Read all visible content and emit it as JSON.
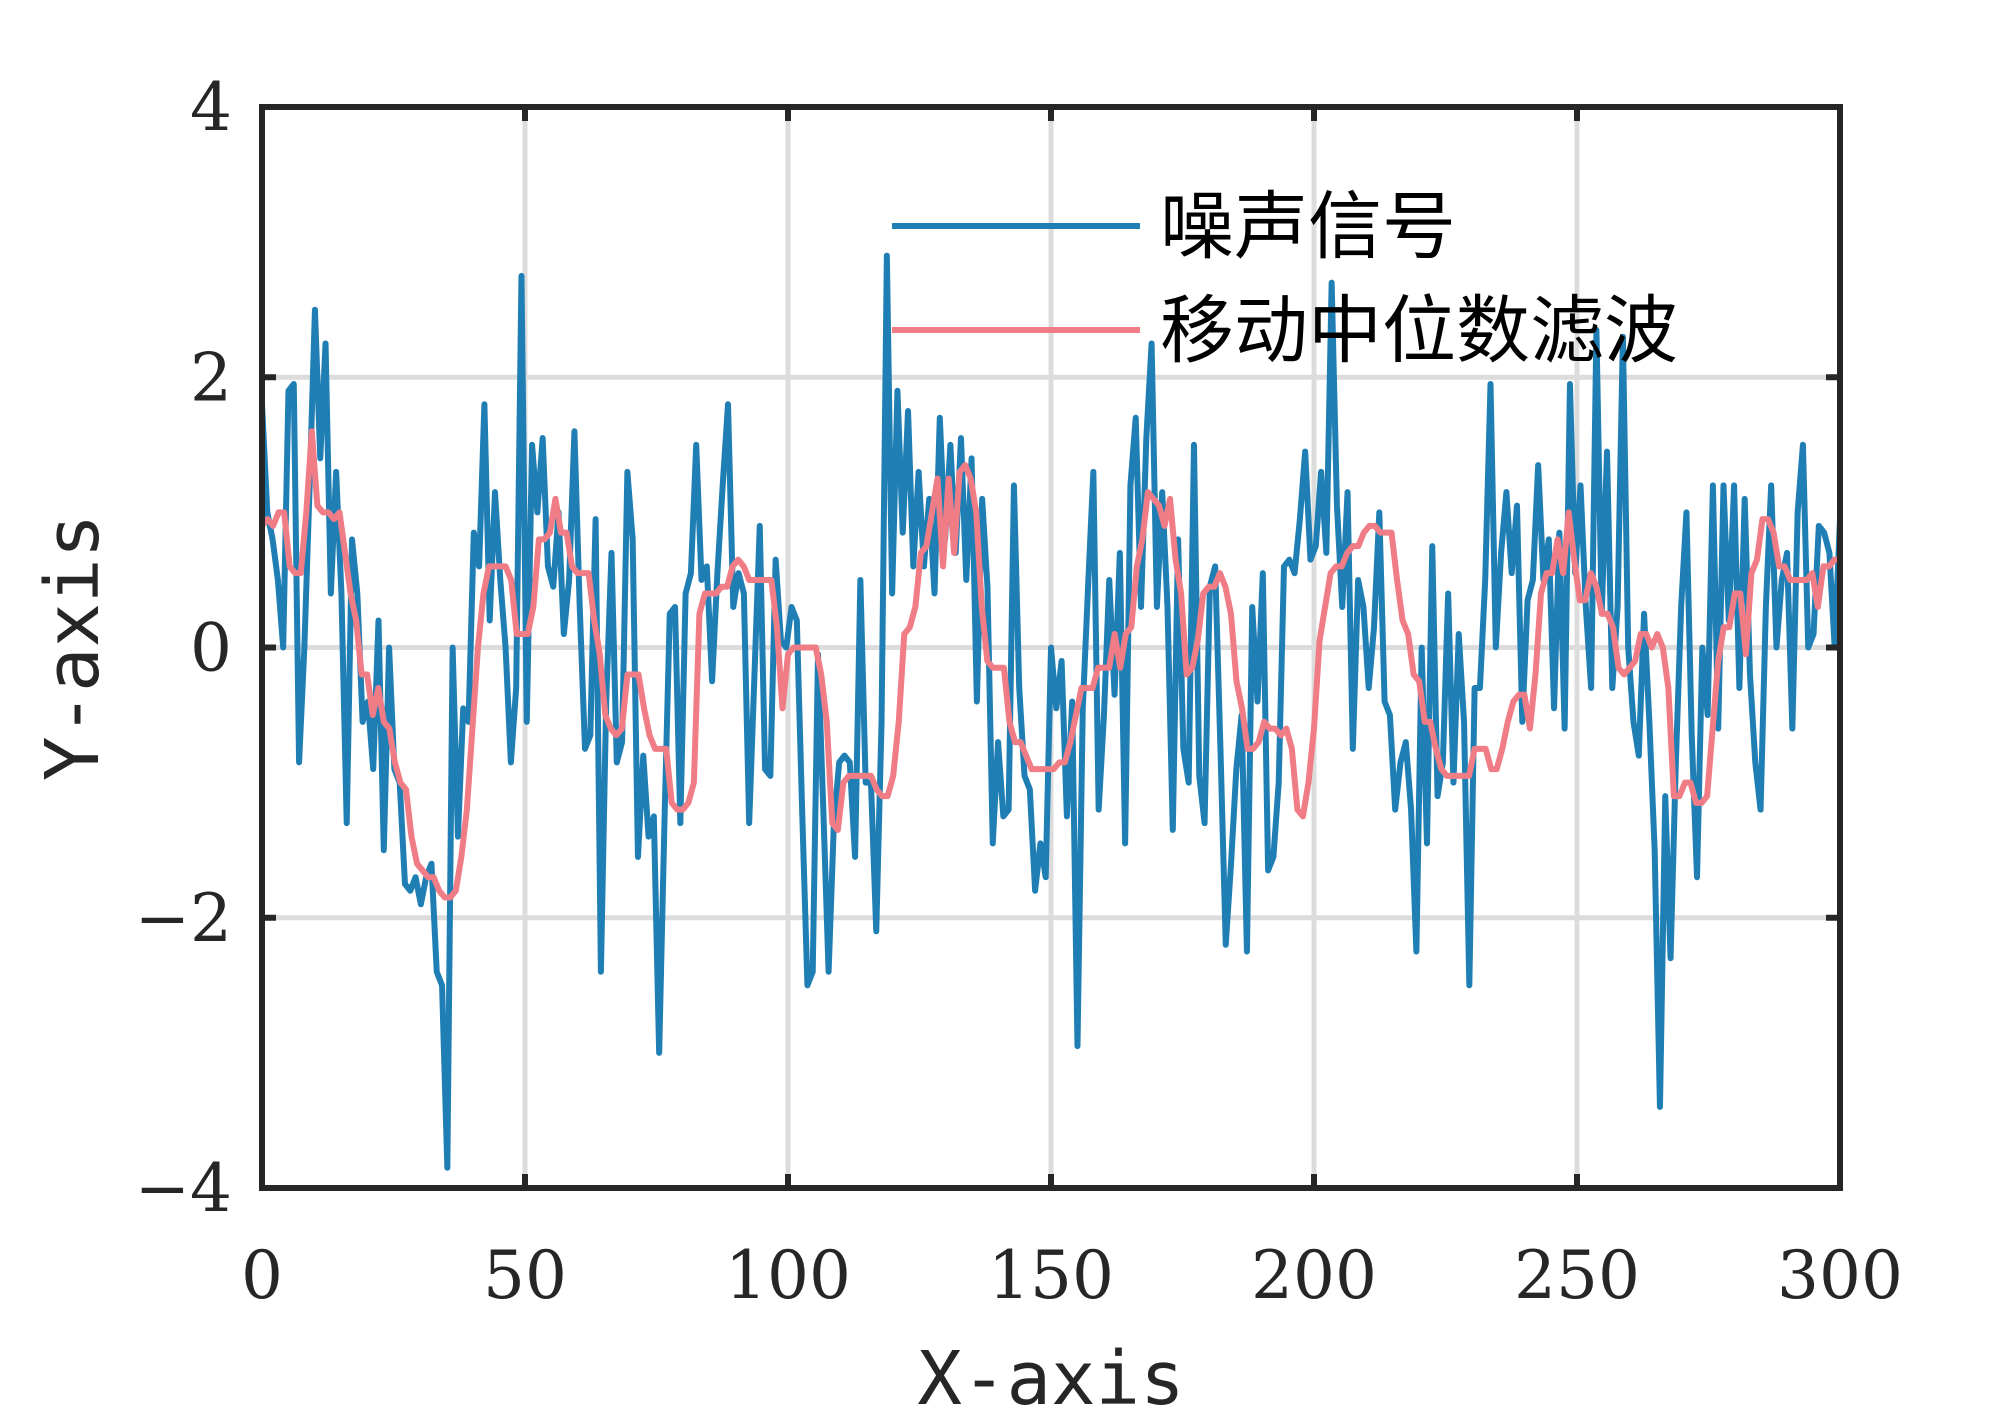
{
  "chart_data": {
    "type": "line",
    "title": "",
    "xlabel": "X-axis",
    "ylabel": "Y-axis",
    "xlim": [
      0,
      300
    ],
    "ylim": [
      -4,
      4
    ],
    "xticks": [
      0,
      50,
      100,
      150,
      200,
      250,
      300
    ],
    "yticks": [
      -4,
      -2,
      0,
      2,
      4
    ],
    "xtick_labels": [
      "0",
      "50",
      "100",
      "150",
      "200",
      "250",
      "300"
    ],
    "ytick_labels": [
      "−4",
      "−2",
      "0",
      "2",
      "4"
    ],
    "grid": true,
    "legend_position": "top-right",
    "series": [
      {
        "name": "噪声信号",
        "color": "#1F7FB4",
        "values": [
          1.8,
          1.0,
          0.8,
          0.5,
          0.0,
          1.9,
          1.95,
          -0.85,
          0.0,
          1.2,
          2.5,
          1.4,
          2.25,
          0.4,
          1.3,
          0.4,
          -1.3,
          0.8,
          0.4,
          -0.55,
          -0.4,
          -0.9,
          0.2,
          -1.5,
          0.0,
          -0.9,
          -1.0,
          -1.75,
          -1.8,
          -1.7,
          -1.9,
          -1.7,
          -1.6,
          -2.4,
          -2.5,
          -3.85,
          0.0,
          -1.4,
          -0.45,
          -0.55,
          0.85,
          0.6,
          1.8,
          0.2,
          1.15,
          0.5,
          0.0,
          -0.85,
          -0.3,
          2.75,
          -0.55,
          1.5,
          1.0,
          1.55,
          0.6,
          0.45,
          1.0,
          0.1,
          0.5,
          1.6,
          0.3,
          -0.75,
          -0.65,
          0.95,
          -2.4,
          -0.4,
          0.7,
          -0.85,
          -0.7,
          1.3,
          0.8,
          -1.55,
          -0.8,
          -1.4,
          -1.25,
          -3.0,
          -1.3,
          0.25,
          0.3,
          -1.3,
          0.4,
          0.55,
          1.5,
          0.5,
          0.6,
          -0.25,
          0.55,
          1.2,
          1.8,
          0.3,
          0.55,
          0.4,
          -1.3,
          -0.2,
          0.9,
          -0.9,
          -0.95,
          0.65,
          0.05,
          0.0,
          0.3,
          0.2,
          -1.2,
          -2.5,
          -2.4,
          -0.05,
          -1.2,
          -2.4,
          -1.3,
          -0.85,
          -0.8,
          -0.85,
          -1.55,
          0.5,
          -1.0,
          -1.0,
          -2.1,
          -0.55,
          2.9,
          0.4,
          1.9,
          0.85,
          1.75,
          0.6,
          1.3,
          0.6,
          1.1,
          0.4,
          1.7,
          0.8,
          1.5,
          0.7,
          1.55,
          0.5,
          1.4,
          -0.4,
          1.1,
          0.45,
          -1.45,
          -0.7,
          -1.25,
          -1.2,
          1.2,
          -0.3,
          -0.95,
          -1.05,
          -1.8,
          -1.45,
          -1.7,
          0.0,
          -0.45,
          -0.1,
          -1.25,
          -0.4,
          -2.95,
          -0.45,
          0.45,
          1.3,
          -1.2,
          -0.5,
          0.5,
          -0.35,
          0.7,
          -1.45,
          1.2,
          1.7,
          0.3,
          1.55,
          2.25,
          0.3,
          1.15,
          0.3,
          -1.35,
          0.8,
          -0.75,
          -1.0,
          1.5,
          -0.95,
          -1.3,
          0.45,
          0.6,
          -0.75,
          -2.2,
          -1.6,
          -0.9,
          -0.5,
          -2.25,
          0.3,
          -0.4,
          0.55,
          -1.65,
          -1.55,
          -1.0,
          0.6,
          0.65,
          0.55,
          0.95,
          1.45,
          0.65,
          0.75,
          1.3,
          0.7,
          2.7,
          1.05,
          0.3,
          1.15,
          -0.75,
          0.5,
          0.3,
          -0.3,
          0.15,
          1.0,
          -0.4,
          -0.5,
          -1.2,
          -0.85,
          -0.7,
          -1.2,
          -2.25,
          0.0,
          -1.45,
          0.75,
          -1.1,
          -0.85,
          0.4,
          -1.0,
          0.1,
          -0.55,
          -2.5,
          -0.3,
          -0.3,
          0.5,
          1.95,
          0.0,
          0.7,
          1.15,
          0.55,
          1.05,
          -0.55,
          0.35,
          0.5,
          1.35,
          0.5,
          0.8,
          -0.45,
          0.85,
          -0.6,
          1.95,
          0.55,
          1.2,
          0.3,
          -0.3,
          2.35,
          0.25,
          1.45,
          -0.3,
          0.3,
          2.3,
          0.0,
          -0.55,
          -0.8,
          0.25,
          -0.55,
          -1.5,
          -3.4,
          -1.1,
          -2.3,
          -0.85,
          0.3,
          1.0,
          -0.65,
          -1.7,
          0.0,
          -0.5,
          1.2,
          -0.6,
          1.2,
          0.2,
          1.2,
          -0.3,
          1.1,
          -0.2,
          -0.85,
          -1.2,
          0.3,
          1.2,
          0.0,
          0.5,
          0.7,
          -0.6,
          1.0,
          1.5,
          0.0,
          0.1,
          0.9,
          0.85,
          0.7,
          0.0,
          0.95
        ]
      },
      {
        "name": "移动中位数滤波",
        "color": "#F07C86",
        "values": [
          0.9,
          0.95,
          0.9,
          1.0,
          1.0,
          0.6,
          0.55,
          0.55,
          1.0,
          1.6,
          1.05,
          1.0,
          1.0,
          0.95,
          1.0,
          0.7,
          0.4,
          0.2,
          -0.2,
          -0.2,
          -0.5,
          -0.3,
          -0.55,
          -0.6,
          -0.85,
          -1.0,
          -1.05,
          -1.4,
          -1.6,
          -1.65,
          -1.7,
          -1.7,
          -1.8,
          -1.85,
          -1.85,
          -1.8,
          -1.55,
          -1.2,
          -0.6,
          0.0,
          0.4,
          0.6,
          0.6,
          0.6,
          0.6,
          0.5,
          0.1,
          0.1,
          0.1,
          0.3,
          0.8,
          0.8,
          0.85,
          1.1,
          0.85,
          0.85,
          0.6,
          0.55,
          0.55,
          0.55,
          0.2,
          -0.05,
          -0.5,
          -0.6,
          -0.65,
          -0.6,
          -0.2,
          -0.2,
          -0.2,
          -0.45,
          -0.65,
          -0.75,
          -0.75,
          -0.75,
          -1.15,
          -1.2,
          -1.2,
          -1.15,
          -1.0,
          0.25,
          0.4,
          0.4,
          0.4,
          0.45,
          0.45,
          0.6,
          0.65,
          0.6,
          0.5,
          0.5,
          0.5,
          0.5,
          0.5,
          0.15,
          -0.45,
          -0.05,
          0.0,
          0.0,
          0.0,
          0.0,
          0.0,
          -0.2,
          -0.55,
          -1.3,
          -1.35,
          -1.0,
          -0.95,
          -0.95,
          -0.95,
          -0.95,
          -0.95,
          -1.05,
          -1.1,
          -1.1,
          -0.95,
          -0.55,
          0.1,
          0.15,
          0.3,
          0.7,
          0.75,
          1.0,
          1.25,
          0.6,
          1.25,
          0.7,
          1.3,
          1.35,
          1.25,
          1.0,
          0.3,
          -0.1,
          -0.15,
          -0.15,
          -0.15,
          -0.55,
          -0.7,
          -0.7,
          -0.8,
          -0.9,
          -0.9,
          -0.9,
          -0.9,
          -0.9,
          -0.85,
          -0.85,
          -0.7,
          -0.5,
          -0.3,
          -0.3,
          -0.3,
          -0.15,
          -0.15,
          -0.15,
          0.1,
          -0.15,
          0.1,
          0.15,
          0.6,
          0.8,
          1.15,
          1.1,
          1.05,
          0.9,
          1.1,
          0.65,
          0.4,
          -0.2,
          -0.15,
          0.05,
          0.4,
          0.45,
          0.45,
          0.55,
          0.45,
          0.25,
          -0.25,
          -0.45,
          -0.75,
          -0.75,
          -0.7,
          -0.55,
          -0.6,
          -0.6,
          -0.65,
          -0.6,
          -0.75,
          -1.2,
          -1.25,
          -1.0,
          -0.6,
          0.05,
          0.3,
          0.55,
          0.6,
          0.6,
          0.7,
          0.75,
          0.75,
          0.85,
          0.9,
          0.9,
          0.85,
          0.85,
          0.85,
          0.5,
          0.2,
          0.1,
          -0.2,
          -0.25,
          -0.55,
          -0.55,
          -0.75,
          -0.9,
          -0.95,
          -0.95,
          -0.95,
          -0.95,
          -0.95,
          -0.75,
          -0.75,
          -0.75,
          -0.9,
          -0.9,
          -0.75,
          -0.55,
          -0.4,
          -0.35,
          -0.35,
          -0.6,
          -0.2,
          0.4,
          0.55,
          0.55,
          0.8,
          0.55,
          1.0,
          0.65,
          0.35,
          0.35,
          0.55,
          0.45,
          0.25,
          0.25,
          0.15,
          -0.15,
          -0.2,
          -0.15,
          -0.1,
          0.1,
          0.1,
          0.0,
          0.1,
          0.0,
          -0.3,
          -1.1,
          -1.1,
          -1.0,
          -1.0,
          -1.15,
          -1.15,
          -1.1,
          -0.6,
          -0.1,
          0.15,
          0.15,
          0.4,
          0.4,
          -0.05,
          0.55,
          0.65,
          0.95,
          0.95,
          0.85,
          0.6,
          0.6,
          0.5,
          0.5,
          0.5,
          0.5,
          0.55,
          0.3,
          0.6,
          0.6,
          0.65,
          0.65
        ]
      }
    ]
  }
}
